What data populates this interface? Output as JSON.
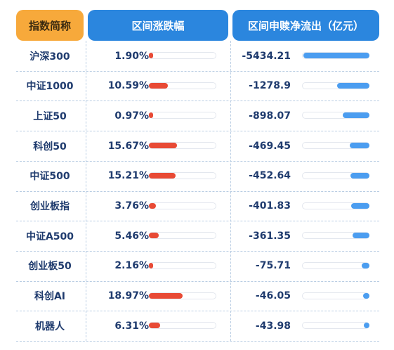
{
  "header": {
    "name": "指数简称",
    "change": "区间涨跌幅",
    "flow": "区间申赎净流出（亿元）"
  },
  "colors": {
    "header_name_bg": "#f7a93b",
    "header_bg": "#2b86de",
    "change_bar": "#e84a35",
    "flow_bar": "#4b9df0",
    "text": "#1f3b6e"
  },
  "rows": [
    {
      "name": "沪深300",
      "change": "1.90%",
      "change_value": 1.9,
      "flow": "-5434.21",
      "flow_value": -5434.21
    },
    {
      "name": "中证1000",
      "change": "10.59%",
      "change_value": 10.59,
      "flow": "-1278.9",
      "flow_value": -1278.9
    },
    {
      "name": "上证50",
      "change": "0.97%",
      "change_value": 0.97,
      "flow": "-898.07",
      "flow_value": -898.07
    },
    {
      "name": "科创50",
      "change": "15.67%",
      "change_value": 15.67,
      "flow": "-469.45",
      "flow_value": -469.45
    },
    {
      "name": "中证500",
      "change": "15.21%",
      "change_value": 15.21,
      "flow": "-452.64",
      "flow_value": -452.64
    },
    {
      "name": "创业板指",
      "change": "3.76%",
      "change_value": 3.76,
      "flow": "-401.83",
      "flow_value": -401.83
    },
    {
      "name": "中证A500",
      "change": "5.46%",
      "change_value": 5.46,
      "flow": "-361.35",
      "flow_value": -361.35
    },
    {
      "name": "创业板50",
      "change": "2.16%",
      "change_value": 2.16,
      "flow": "-75.71",
      "flow_value": -75.71
    },
    {
      "name": "科创AI",
      "change": "18.97%",
      "change_value": 18.97,
      "flow": "-46.05",
      "flow_value": -46.05
    },
    {
      "name": "机器人",
      "change": "6.31%",
      "change_value": 6.31,
      "flow": "-43.98",
      "flow_value": -43.98
    }
  ]
}
